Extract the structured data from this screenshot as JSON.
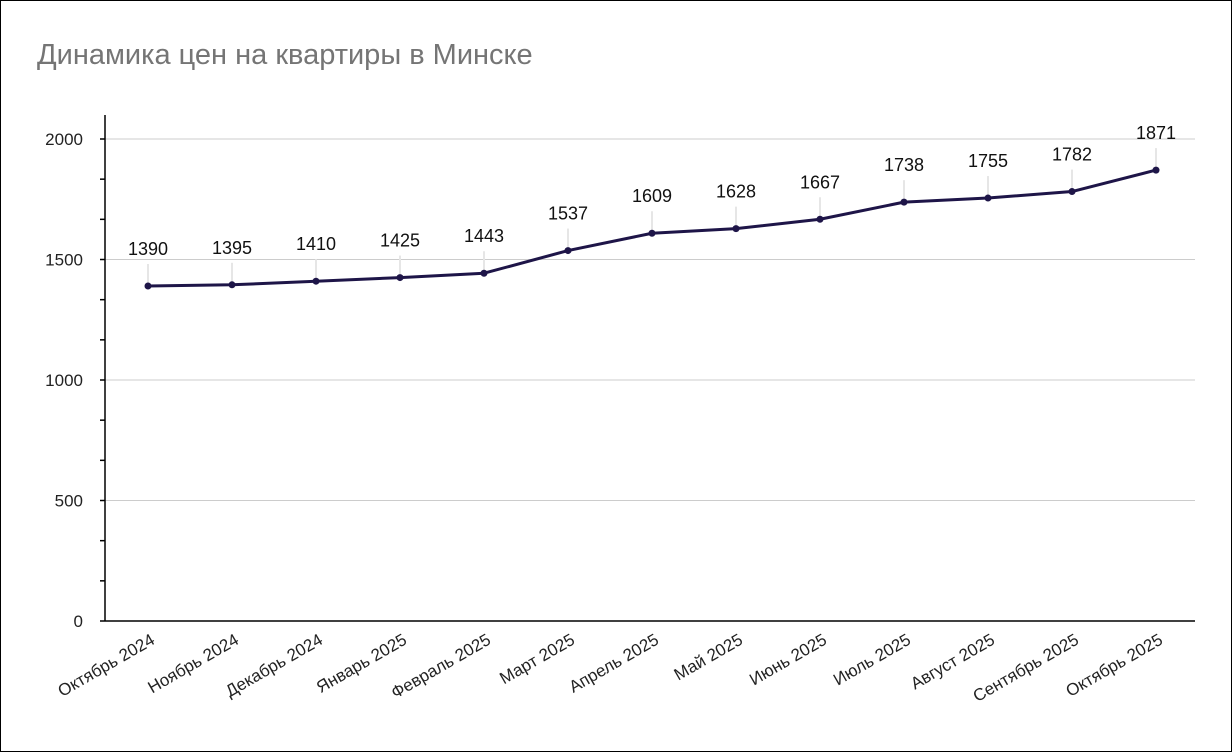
{
  "chart_data": {
    "type": "line",
    "title": "Динамика цен на квартиры в Минске",
    "xlabel": "",
    "ylabel": "",
    "categories": [
      "Октябрь 2024",
      "Ноябрь 2024",
      "Декабрь 2024",
      "Январь 2025",
      "Февраль 2025",
      "Март 2025",
      "Апрель 2025",
      "Май 2025",
      "Июнь 2025",
      "Июль 2025",
      "Август 2025",
      "Сентябрь 2025",
      "Октябрь 2025"
    ],
    "series": [
      {
        "values": [
          1390,
          1395,
          1410,
          1425,
          1443,
          1537,
          1609,
          1628,
          1667,
          1738,
          1755,
          1782,
          1871
        ]
      }
    ],
    "ylim": [
      0,
      2000
    ],
    "yticks": [
      "0",
      "500",
      "1000",
      "1500",
      "2000"
    ],
    "grid": true,
    "data_labels": true,
    "legend": "none",
    "colors": {
      "line": "#1e1548",
      "title": "#757575",
      "grid": "#cccccc"
    }
  }
}
